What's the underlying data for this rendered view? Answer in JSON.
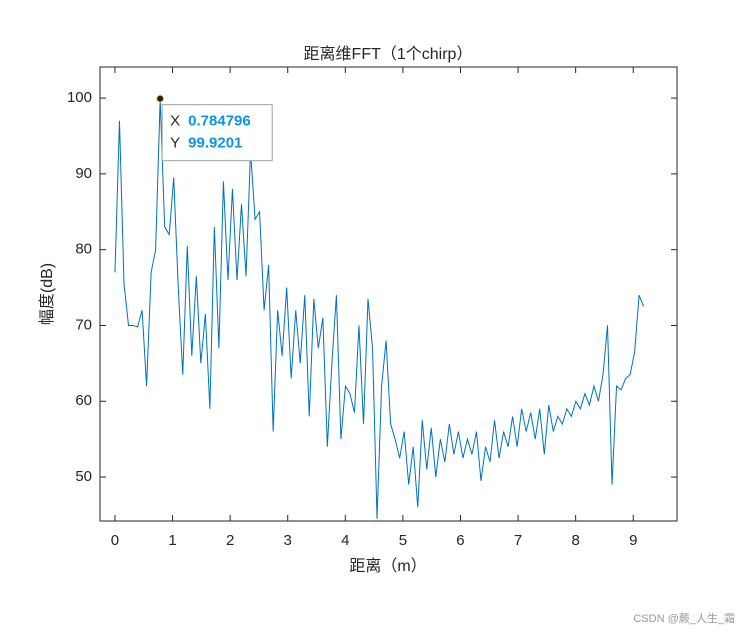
{
  "chart_data": {
    "type": "line",
    "title": "距离维FFT（1个chirp）",
    "x_label": "距离（m）",
    "y_label": "幅度(dB)",
    "x": [
      0,
      0.078,
      0.157,
      0.235,
      0.314,
      0.392,
      0.471,
      0.549,
      0.628,
      0.706,
      0.785,
      0.863,
      0.942,
      1.02,
      1.099,
      1.177,
      1.256,
      1.334,
      1.413,
      1.491,
      1.57,
      1.648,
      1.726,
      1.805,
      1.883,
      1.962,
      2.04,
      2.119,
      2.197,
      2.276,
      2.354,
      2.433,
      2.511,
      2.59,
      2.668,
      2.747,
      2.825,
      2.903,
      2.982,
      3.06,
      3.139,
      3.217,
      3.296,
      3.374,
      3.453,
      3.531,
      3.61,
      3.688,
      3.767,
      3.845,
      3.924,
      4.002,
      4.08,
      4.159,
      4.237,
      4.316,
      4.394,
      4.473,
      4.551,
      4.63,
      4.708,
      4.787,
      4.865,
      4.944,
      5.022,
      5.101,
      5.179,
      5.258,
      5.336,
      5.414,
      5.493,
      5.571,
      5.65,
      5.728,
      5.807,
      5.885,
      5.964,
      6.042,
      6.121,
      6.199,
      6.278,
      6.356,
      6.435,
      6.513,
      6.591,
      6.67,
      6.748,
      6.827,
      6.905,
      6.984,
      7.062,
      7.141,
      7.219,
      7.298,
      7.376,
      7.455,
      7.533,
      7.612,
      7.69,
      7.769,
      7.847,
      7.925,
      8.004,
      8.082,
      8.161,
      8.239,
      8.318,
      8.396,
      8.475,
      8.553,
      8.632,
      8.71,
      8.789,
      8.867,
      8.946,
      9.024,
      9.102,
      9.181
    ],
    "series": [
      {
        "color": "#0072bd",
        "values": [
          77,
          97,
          75.5,
          70,
          70,
          69.8,
          72,
          62,
          77,
          80,
          99.92,
          83,
          82,
          89.5,
          75,
          63.5,
          80.5,
          66,
          76.5,
          65,
          71.5,
          59,
          83,
          67,
          89,
          76,
          88,
          76,
          86,
          76.5,
          93,
          84,
          85,
          72,
          78,
          56,
          72,
          66,
          75,
          63,
          72,
          65,
          74,
          58,
          73.5,
          67,
          71,
          54,
          65,
          74,
          55,
          62,
          61,
          58.5,
          70,
          57,
          73.5,
          67,
          44.5,
          62,
          68,
          57,
          55,
          52.5,
          56,
          49,
          54,
          46,
          57.5,
          51,
          56.5,
          50,
          55,
          52,
          57,
          53,
          56,
          52.5,
          55,
          53,
          56,
          49.5,
          54,
          52,
          57.5,
          52.5,
          56,
          54,
          58,
          54,
          59,
          56,
          58.5,
          55,
          59,
          53,
          59.5,
          56,
          58,
          57,
          59,
          58,
          60,
          59,
          61,
          59.5,
          62,
          60,
          63.5,
          70,
          49,
          62,
          61.5,
          63,
          63.5,
          66.5,
          74,
          72.5
        ]
      }
    ],
    "xlim": [
      -0.26,
      9.76
    ],
    "ylim": [
      44.2,
      104.1
    ],
    "xticks": [
      0,
      1,
      2,
      3,
      4,
      5,
      6,
      7,
      8,
      9
    ],
    "yticks": [
      50,
      60,
      70,
      80,
      90,
      100
    ],
    "datatip": {
      "x_name": "X",
      "x": 0.784796,
      "y_name": "Y",
      "y": 99.9201
    }
  },
  "watermark": "CSDN @蕨_人生_霜"
}
